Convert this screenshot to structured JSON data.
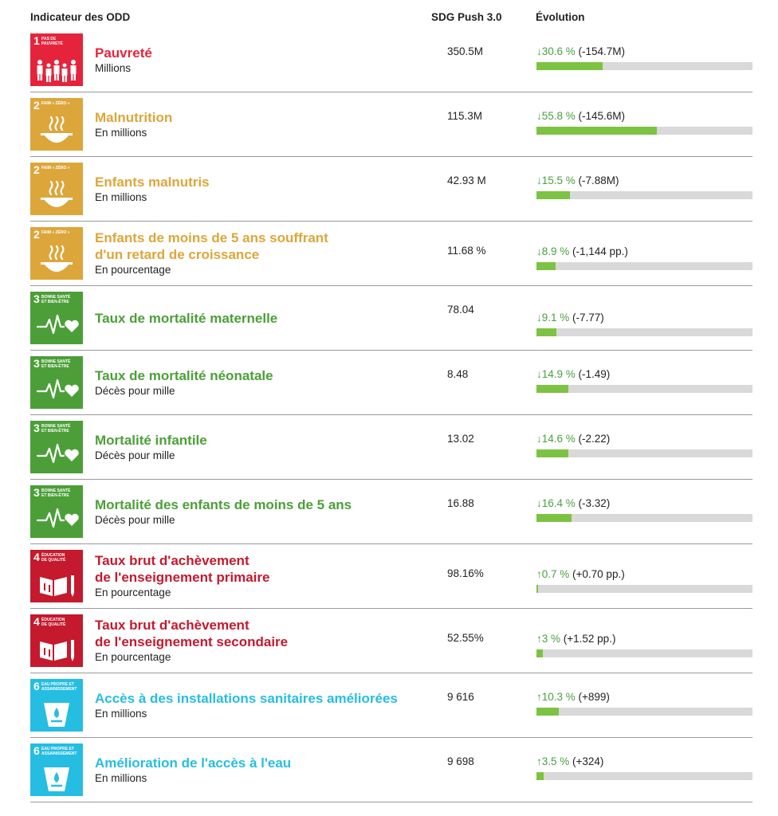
{
  "header": {
    "indicator": "Indicateur des ODD",
    "push": "SDG Push 3.0",
    "evolution": "Évolution"
  },
  "colors": {
    "sdg1": "#e5243b",
    "sdg2": "#dda63a",
    "sdg3": "#4c9f38",
    "sdg4": "#c5192d",
    "sdg6": "#26bde2",
    "bar_fill": "#7dc242",
    "bar_track": "#d9d9d9",
    "pct_text": "#4aa03f"
  },
  "rows": [
    {
      "goal": "1",
      "goal_label": [
        "PAS DE",
        "PAUVRETÉ"
      ],
      "icon": "family-icon",
      "color": "#e5243b",
      "title": [
        "Pauvreté"
      ],
      "unit": "Millions",
      "value": "350.5M",
      "arrow": "↓",
      "pct": "30.6 %",
      "delta": "(-154.7M)",
      "level": 30.6
    },
    {
      "goal": "2",
      "goal_label": [
        "FAIM « ZÉRO »"
      ],
      "icon": "bowl-icon",
      "color": "#dda63a",
      "title": [
        "Malnutrition"
      ],
      "unit": "En millions",
      "value": "115.3M",
      "arrow": "↓",
      "pct": "55.8 %",
      "delta": "(-145.6M)",
      "level": 55.8
    },
    {
      "goal": "2",
      "goal_label": [
        "FAIM « ZÉRO »"
      ],
      "icon": "bowl-icon",
      "color": "#dda63a",
      "title": [
        "Enfants malnutris"
      ],
      "unit": "En millions",
      "value": "42.93 M",
      "arrow": "↓",
      "pct": "15.5 %",
      "delta": "(-7.88M)",
      "level": 15.5
    },
    {
      "goal": "2",
      "goal_label": [
        "FAIM « ZÉRO »"
      ],
      "icon": "bowl-icon",
      "color": "#dda63a",
      "title": [
        "Enfants de moins de 5 ans souffrant",
        "d'un retard de croissance"
      ],
      "unit": "En pourcentage",
      "value": "11.68 %",
      "arrow": "↓",
      "pct": "8.9 %",
      "delta": "(-1,144 pp.)",
      "level": 8.9
    },
    {
      "goal": "3",
      "goal_label": [
        "BONNE SANTÉ",
        "ET BIEN-ÊTRE"
      ],
      "icon": "heartbeat-icon",
      "color": "#4c9f38",
      "title": [
        "Taux de mortalité maternelle"
      ],
      "unit": "",
      "value": "78.04",
      "arrow": "↓",
      "pct": "9.1 %",
      "delta": "(-7.77)",
      "level": 9.1
    },
    {
      "goal": "3",
      "goal_label": [
        "BONNE SANTÉ",
        "ET BIEN-ÊTRE"
      ],
      "icon": "heartbeat-icon",
      "color": "#4c9f38",
      "title": [
        "Taux de mortalité néonatale"
      ],
      "unit": "Décès pour mille",
      "value": "8.48",
      "arrow": "↓",
      "pct": "14.9 %",
      "delta": "(-1.49)",
      "level": 14.9
    },
    {
      "goal": "3",
      "goal_label": [
        "BONNE SANTÉ",
        "ET BIEN-ÊTRE"
      ],
      "icon": "heartbeat-icon",
      "color": "#4c9f38",
      "title": [
        "Mortalité infantile"
      ],
      "unit": "Décès pour mille",
      "value": "13.02",
      "arrow": "↓",
      "pct": "14.6 %",
      "delta": "(-2.22)",
      "level": 14.6
    },
    {
      "goal": "3",
      "goal_label": [
        "BONNE SANTÉ",
        "ET BIEN-ÊTRE"
      ],
      "icon": "heartbeat-icon",
      "color": "#4c9f38",
      "title": [
        "Mortalité des enfants de moins de 5 ans"
      ],
      "unit": "Décès pour mille",
      "value": "16.88",
      "arrow": "↓",
      "pct": "16.4 %",
      "delta": "(-3.32)",
      "level": 16.4
    },
    {
      "goal": "4",
      "goal_label": [
        "ÉDUCATION",
        "DE QUALITÉ"
      ],
      "icon": "book-icon",
      "color": "#c5192d",
      "title": [
        "Taux brut d'achèvement",
        "de l'enseignement primaire"
      ],
      "unit": "En pourcentage",
      "value": "98.16%",
      "arrow": "↑",
      "pct": "0.7 %",
      "delta": "(+0.70 pp.)",
      "level": 0.7
    },
    {
      "goal": "4",
      "goal_label": [
        "ÉDUCATION",
        "DE QUALITÉ"
      ],
      "icon": "book-icon",
      "color": "#c5192d",
      "title": [
        "Taux brut d'achèvement",
        "de l'enseignement secondaire"
      ],
      "unit": "En pourcentage",
      "value": "52.55%",
      "arrow": "↑",
      "pct": "3 %",
      "delta": "(+1.52 pp.)",
      "level": 3
    },
    {
      "goal": "6",
      "goal_label": [
        "EAU PROPRE ET",
        "ASSAINISSEMENT"
      ],
      "icon": "water-glass-icon",
      "color": "#26bde2",
      "title": [
        "Accès à des installations sanitaires améliorées"
      ],
      "unit": "En millions",
      "value": "9 616",
      "arrow": "↑",
      "pct": "10.3 %",
      "delta": "(+899)",
      "level": 10.3
    },
    {
      "goal": "6",
      "goal_label": [
        "EAU PROPRE ET",
        "ASSAINISSEMENT"
      ],
      "icon": "water-glass-icon",
      "color": "#26bde2",
      "title": [
        "Amélioration de l'accès à l'eau"
      ],
      "unit": "En millions",
      "value": "9 698",
      "arrow": "↑",
      "pct": "3.5 %",
      "delta": "(+324)",
      "level": 3.5
    }
  ]
}
